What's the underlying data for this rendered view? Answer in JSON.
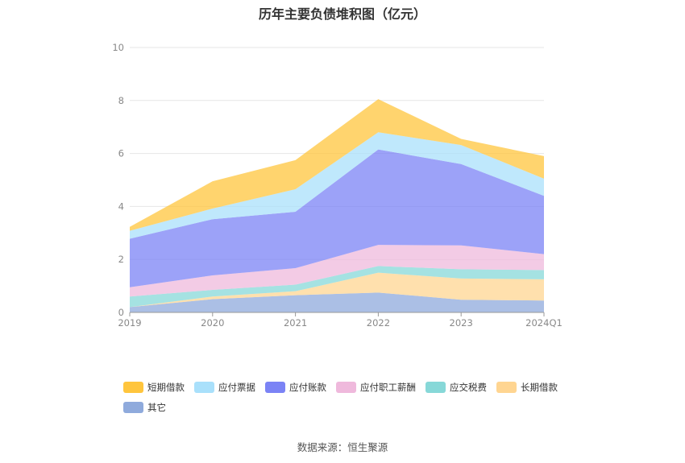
{
  "chart_data": {
    "type": "area",
    "title": "历年主要负债堆积图（亿元）",
    "stacked": true,
    "categories": [
      "2019",
      "2020",
      "2021",
      "2022",
      "2023",
      "2024Q1"
    ],
    "ylim": [
      0,
      10
    ],
    "yticks": [
      "0",
      "2",
      "4",
      "6",
      "8",
      "10"
    ],
    "grid": true,
    "legend_position": "bottom",
    "series": [
      {
        "name": "其它",
        "color": "#8faadc",
        "values": [
          0.2,
          0.5,
          0.65,
          0.75,
          0.48,
          0.45
        ]
      },
      {
        "name": "长期借款",
        "color": "#ffd591",
        "values": [
          0.0,
          0.1,
          0.15,
          0.75,
          0.8,
          0.8
        ]
      },
      {
        "name": "应交税费",
        "color": "#87d8d8",
        "values": [
          0.4,
          0.25,
          0.25,
          0.25,
          0.35,
          0.35
        ]
      },
      {
        "name": "应付职工薪酬",
        "color": "#efb9dc",
        "values": [
          0.35,
          0.55,
          0.62,
          0.8,
          0.9,
          0.6
        ]
      },
      {
        "name": "应付账款",
        "color": "#7b83f5",
        "values": [
          1.83,
          2.12,
          2.13,
          3.6,
          3.07,
          2.2
        ]
      },
      {
        "name": "应付票据",
        "color": "#a9e0fb",
        "values": [
          0.3,
          0.4,
          0.85,
          0.65,
          0.72,
          0.65
        ]
      },
      {
        "name": "短期借款",
        "color": "#ffc53d",
        "values": [
          0.15,
          1.03,
          1.1,
          1.25,
          0.23,
          0.85
        ]
      }
    ],
    "legend_order": [
      "短期借款",
      "应付票据",
      "应付账款",
      "应付职工薪酬",
      "应交税费",
      "长期借款",
      "其它"
    ]
  },
  "source": "数据来源：恒生聚源"
}
